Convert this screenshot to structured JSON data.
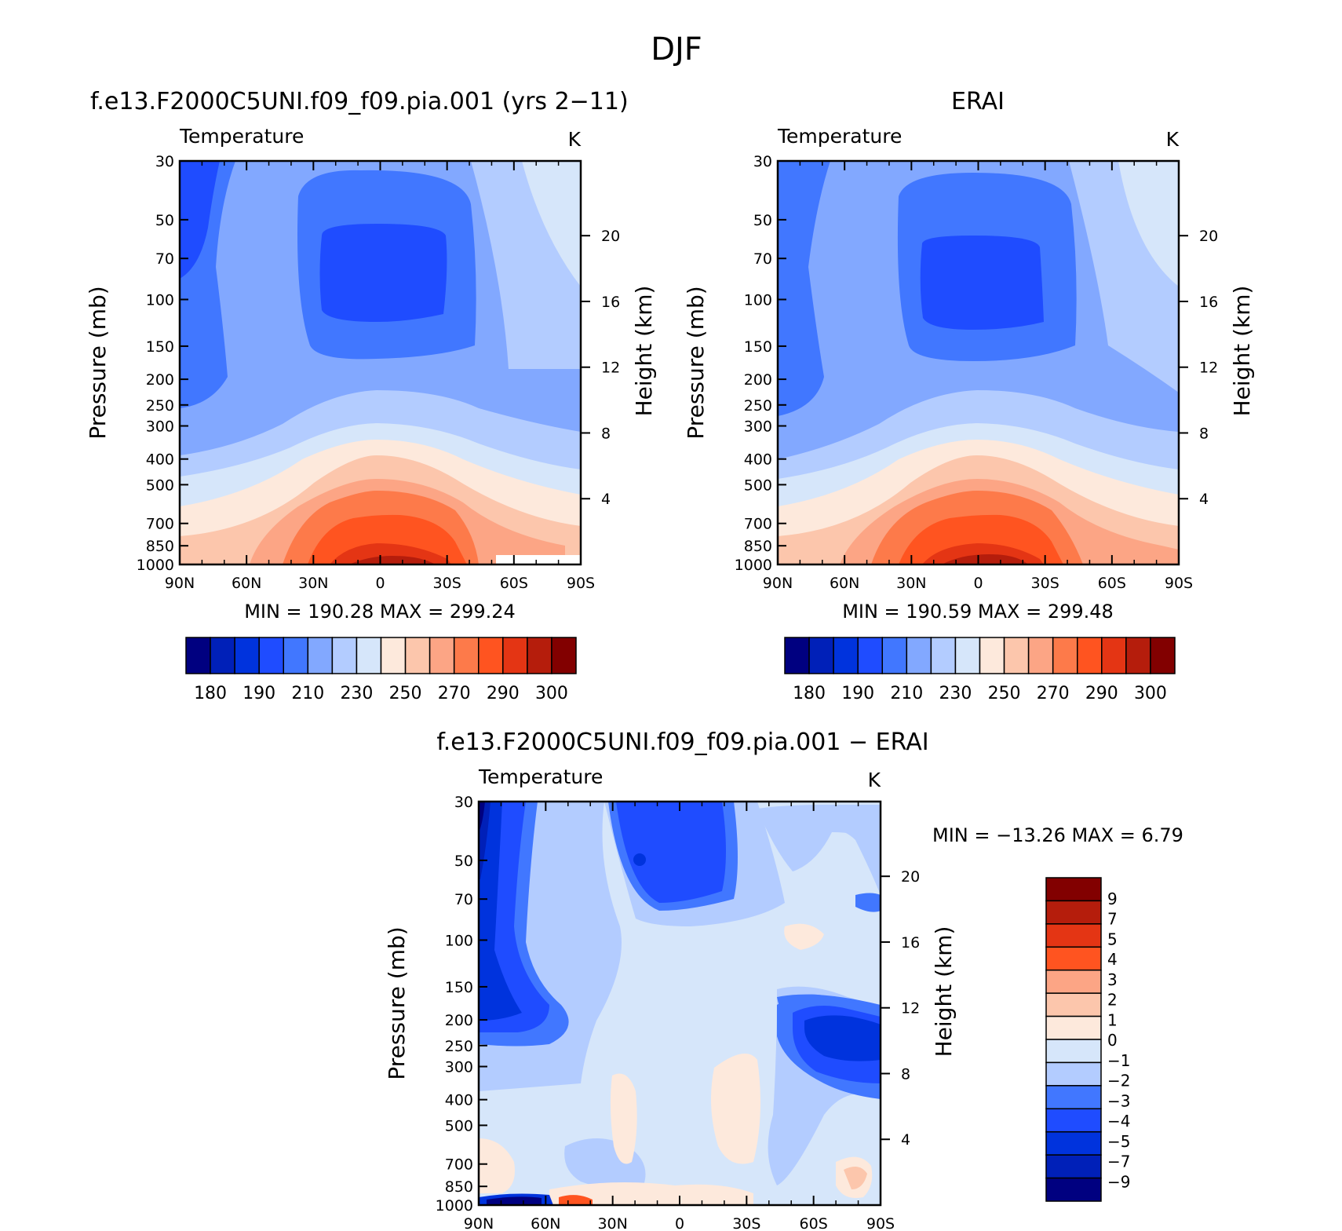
{
  "figure": {
    "title": "DJF"
  },
  "panels": [
    {
      "id": "model",
      "title": "f.e13.F2000C5UNI.f09_f09.pia.001 (yrs 2−11)",
      "left_label": "Temperature",
      "right_label": "K",
      "stats": "MIN =  190.28   MAX =  299.24"
    },
    {
      "id": "obs",
      "title": "ERAI",
      "left_label": "Temperature",
      "right_label": "K",
      "stats": "MIN =  190.59   MAX =  299.48"
    },
    {
      "id": "diff",
      "title": "f.e13.F2000C5UNI.f09_f09.pia.001  −  ERAI",
      "left_label": "Temperature",
      "right_label": "K",
      "stats": "MIN =  −13.26   MAX =     6.79"
    }
  ],
  "axes": {
    "ylabel": "Pressure  (mb)",
    "y2label": "Height  (km)",
    "x_ticks": [
      "90N",
      "60N",
      "30N",
      "0",
      "30S",
      "60S",
      "90S"
    ],
    "y_ticks": [
      30,
      50,
      70,
      100,
      150,
      200,
      250,
      300,
      400,
      500,
      700,
      850,
      1000
    ],
    "y2_ticks": [
      4,
      8,
      12,
      16,
      20
    ]
  },
  "colors": {
    "temp_scale": [
      "#000080",
      "#0020b8",
      "#0033dd",
      "#1f4cff",
      "#4177ff",
      "#82a8ff",
      "#b3ccff",
      "#d6e6fa",
      "#fde9dc",
      "#fcc6ac",
      "#fca585",
      "#fd7a4a",
      "#ff5420",
      "#e43514",
      "#b51d0c",
      "#820000"
    ],
    "diff_scale": [
      "#000080",
      "#0020b8",
      "#0033dd",
      "#1f4cff",
      "#4177ff",
      "#b3ccff",
      "#d6e6fa",
      "#fde9dc",
      "#fcc6ac",
      "#fca585",
      "#ff5420",
      "#e43514",
      "#b51d0c",
      "#820000"
    ]
  },
  "chart_data": [
    {
      "type": "heatmap",
      "title": "f.e13.F2000C5UNI.f09_f09.pia.001 (yrs 2−11)",
      "xlabel": "",
      "ylabel": "Pressure  (mb)",
      "x": [
        "90N",
        "60N",
        "30N",
        "0",
        "30S",
        "60S",
        "90S"
      ],
      "y": [
        30,
        50,
        70,
        100,
        150,
        200,
        250,
        300,
        400,
        500,
        700,
        850,
        1000
      ],
      "colorbar_labels": [
        "180",
        "190",
        "210",
        "230",
        "250",
        "270",
        "290",
        "300"
      ],
      "min": 190.28,
      "max": 299.24
    },
    {
      "type": "heatmap",
      "title": "ERAI",
      "xlabel": "",
      "ylabel": "Pressure  (mb)",
      "x": [
        "90N",
        "60N",
        "30N",
        "0",
        "30S",
        "60S",
        "90S"
      ],
      "y": [
        30,
        50,
        70,
        100,
        150,
        200,
        250,
        300,
        400,
        500,
        700,
        850,
        1000
      ],
      "colorbar_labels": [
        "180",
        "190",
        "210",
        "230",
        "250",
        "270",
        "290",
        "300"
      ],
      "min": 190.59,
      "max": 299.48
    },
    {
      "type": "heatmap",
      "title": "f.e13.F2000C5UNI.f09_f09.pia.001  −  ERAI",
      "xlabel": "",
      "ylabel": "Pressure  (mb)",
      "x": [
        "90N",
        "60N",
        "30N",
        "0",
        "30S",
        "60S",
        "90S"
      ],
      "y": [
        30,
        50,
        70,
        100,
        150,
        200,
        250,
        300,
        400,
        500,
        700,
        850,
        1000
      ],
      "colorbar_labels": [
        "9",
        "7",
        "5",
        "4",
        "3",
        "2",
        "1",
        "0",
        "−1",
        "−2",
        "−3",
        "−4",
        "−5",
        "−7",
        "−9"
      ],
      "min": -13.26,
      "max": 6.79
    }
  ]
}
